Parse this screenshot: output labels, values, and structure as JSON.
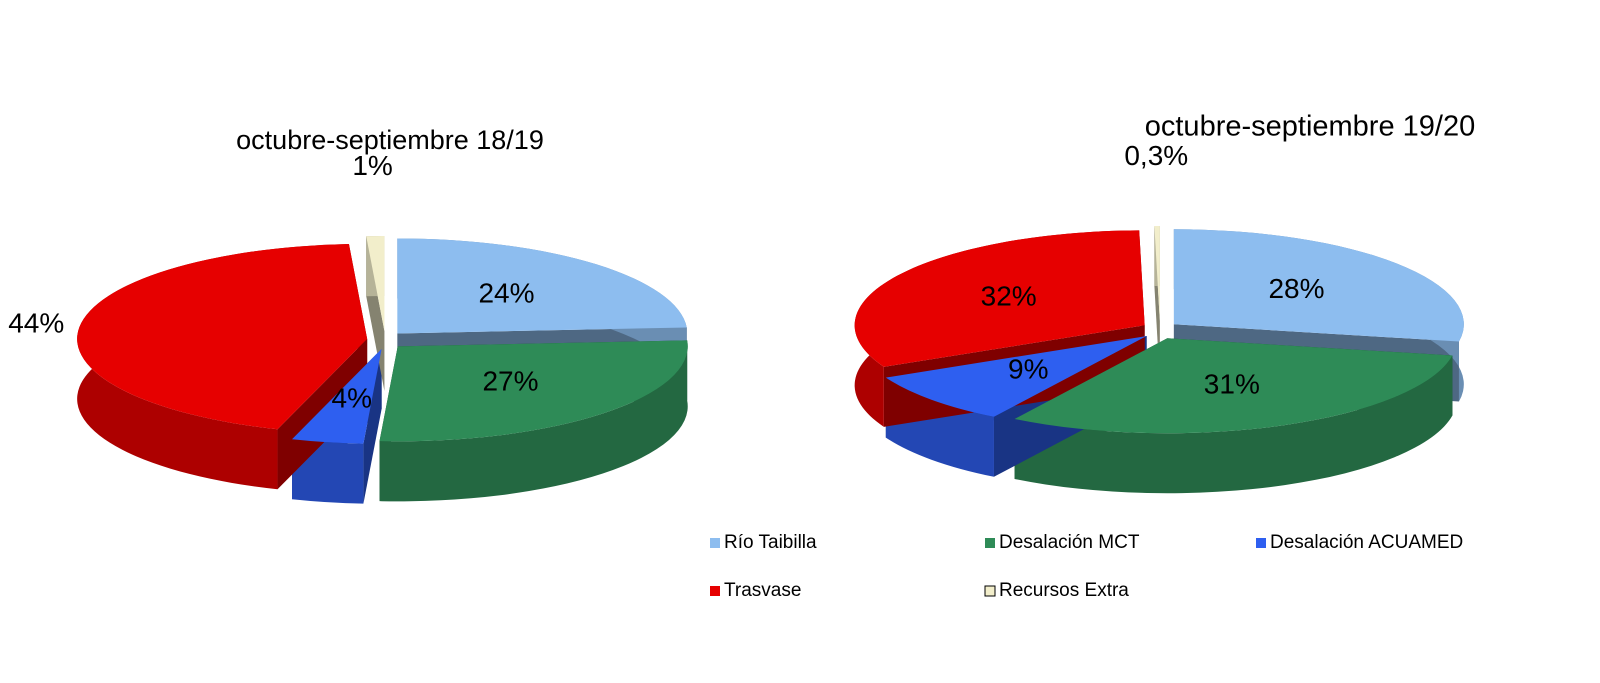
{
  "chart_data": [
    {
      "type": "pie",
      "title": "octubre-septiembre  18/19",
      "categories": [
        "Río Taibilla",
        "Desalación MCT",
        "Desalación ACUAMED",
        "Trasvase",
        "Recursos Extra"
      ],
      "values": [
        24,
        27,
        4,
        44,
        1
      ],
      "value_labels": [
        "24%",
        "27%",
        "4%",
        "44%",
        "1%"
      ],
      "colors": [
        "#8dbdef",
        "#2e8b57",
        "#2e5ff0",
        "#e60000",
        "#f2eecb"
      ]
    },
    {
      "type": "pie",
      "title": "octubre-septiembre  19/20",
      "categories": [
        "Río Taibilla",
        "Desalación MCT",
        "Desalación ACUAMED",
        "Trasvase",
        "Recursos Extra"
      ],
      "values": [
        28,
        31,
        9,
        32,
        0.3
      ],
      "value_labels": [
        "28%",
        "31%",
        "9%",
        "32%",
        "0,3%"
      ],
      "colors": [
        "#8dbdef",
        "#2e8b57",
        "#2e5ff0",
        "#e60000",
        "#f2eecb"
      ]
    }
  ]
}
